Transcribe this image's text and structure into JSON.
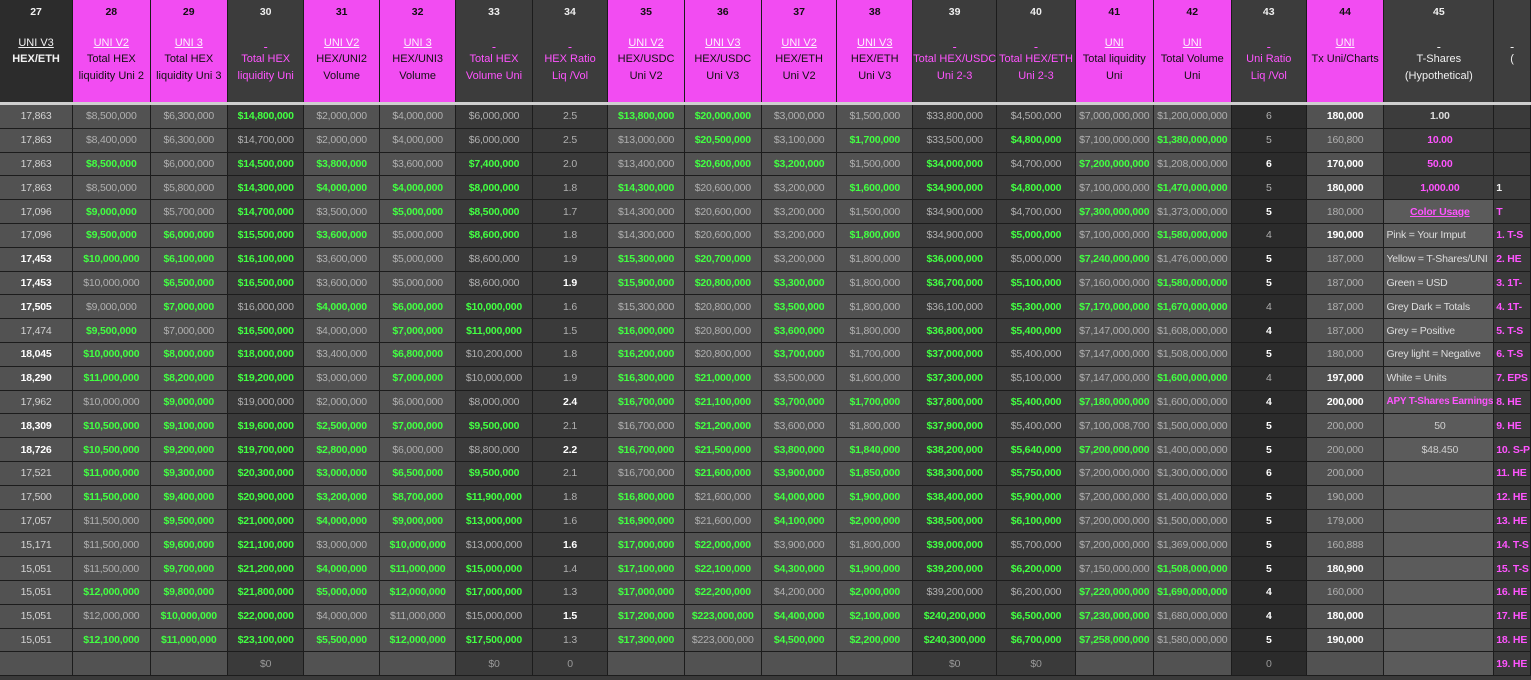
{
  "columns": [
    {
      "num": "27",
      "l1": "UNI V3",
      "l2": "HEX/ETH",
      "l3": ""
    },
    {
      "num": "28",
      "l1": "UNI V2",
      "l2": "Total HEX",
      "l3": "liquidity Uni 2"
    },
    {
      "num": "29",
      "l1": "UNI 3",
      "l2": "Total HEX",
      "l3": "liquidity Uni 3"
    },
    {
      "num": "30",
      "l1": "",
      "l2": "Total HEX",
      "l3": "liquidity Uni"
    },
    {
      "num": "31",
      "l1": "UNI V2",
      "l2": "HEX/UNI2",
      "l3": "Volume"
    },
    {
      "num": "32",
      "l1": "UNI 3",
      "l2": "HEX/UNI3",
      "l3": "Volume"
    },
    {
      "num": "33",
      "l1": "",
      "l2": "Total HEX",
      "l3": "Volume Uni"
    },
    {
      "num": "34",
      "l1": "",
      "l2": "HEX Ratio",
      "l3": "Liq /Vol"
    },
    {
      "num": "35",
      "l1": "UNI V2",
      "l2": "HEX/USDC",
      "l3": "Uni V2"
    },
    {
      "num": "36",
      "l1": "UNI V3",
      "l2": "HEX/USDC",
      "l3": "Uni V3"
    },
    {
      "num": "37",
      "l1": "UNI V2",
      "l2": "HEX/ETH",
      "l3": "Uni V2"
    },
    {
      "num": "38",
      "l1": "UNI V3",
      "l2": "HEX/ETH",
      "l3": "Uni V3"
    },
    {
      "num": "39",
      "l1": "",
      "l2": "Total HEX/USDC",
      "l3": "Uni 2-3"
    },
    {
      "num": "40",
      "l1": "",
      "l2": "Total HEX/ETH",
      "l3": "Uni 2-3"
    },
    {
      "num": "41",
      "l1": "UNI",
      "l2": "Total liquidity",
      "l3": "Uni"
    },
    {
      "num": "42",
      "l1": "UNI",
      "l2": "Total Volume",
      "l3": "Uni"
    },
    {
      "num": "43",
      "l1": "",
      "l2": "Uni Ratio",
      "l3": "Liq /Vol"
    },
    {
      "num": "44",
      "l1": "UNI",
      "l2": "Tx Uni/Charts",
      "l3": ""
    },
    {
      "num": "45",
      "l1": "",
      "l2": "T-Shares",
      "l3": "(Hypothetical)"
    },
    {
      "num": "",
      "l1": "",
      "l2": "(",
      "l3": ""
    }
  ],
  "rows": [
    [
      "17,863",
      "$8,500,000",
      "$6,300,000",
      "$14,800,000",
      "$2,000,000",
      "$4,000,000",
      "$6,000,000",
      "2.5",
      "$13,800,000",
      "$20,000,000",
      "$3,000,000",
      "$1,500,000",
      "$33,800,000",
      "$4,500,000",
      "$7,000,000,000",
      "$1,200,000,000",
      "6",
      "180,000"
    ],
    [
      "17,863",
      "$8,400,000",
      "$6,300,000",
      "$14,700,000",
      "$2,000,000",
      "$4,000,000",
      "$6,000,000",
      "2.5",
      "$13,000,000",
      "$20,500,000",
      "$3,100,000",
      "$1,700,000",
      "$33,500,000",
      "$4,800,000",
      "$7,100,000,000",
      "$1,380,000,000",
      "5",
      "160,800"
    ],
    [
      "17,863",
      "$8,500,000",
      "$6,000,000",
      "$14,500,000",
      "$3,800,000",
      "$3,600,000",
      "$7,400,000",
      "2.0",
      "$13,400,000",
      "$20,600,000",
      "$3,200,000",
      "$1,500,000",
      "$34,000,000",
      "$4,700,000",
      "$7,200,000,000",
      "$1,208,000,000",
      "6",
      "170,000"
    ],
    [
      "17,863",
      "$8,500,000",
      "$5,800,000",
      "$14,300,000",
      "$4,000,000",
      "$4,000,000",
      "$8,000,000",
      "1.8",
      "$14,300,000",
      "$20,600,000",
      "$3,200,000",
      "$1,600,000",
      "$34,900,000",
      "$4,800,000",
      "$7,100,000,000",
      "$1,470,000,000",
      "5",
      "180,000"
    ],
    [
      "17,096",
      "$9,000,000",
      "$5,700,000",
      "$14,700,000",
      "$3,500,000",
      "$5,000,000",
      "$8,500,000",
      "1.7",
      "$14,300,000",
      "$20,600,000",
      "$3,200,000",
      "$1,500,000",
      "$34,900,000",
      "$4,700,000",
      "$7,300,000,000",
      "$1,373,000,000",
      "5",
      "180,000"
    ],
    [
      "17,096",
      "$9,500,000",
      "$6,000,000",
      "$15,500,000",
      "$3,600,000",
      "$5,000,000",
      "$8,600,000",
      "1.8",
      "$14,300,000",
      "$20,600,000",
      "$3,200,000",
      "$1,800,000",
      "$34,900,000",
      "$5,000,000",
      "$7,100,000,000",
      "$1,580,000,000",
      "4",
      "190,000"
    ],
    [
      "17,453",
      "$10,000,000",
      "$6,100,000",
      "$16,100,000",
      "$3,600,000",
      "$5,000,000",
      "$8,600,000",
      "1.9",
      "$15,300,000",
      "$20,700,000",
      "$3,200,000",
      "$1,800,000",
      "$36,000,000",
      "$5,000,000",
      "$7,240,000,000",
      "$1,476,000,000",
      "5",
      "187,000"
    ],
    [
      "17,453",
      "$10,000,000",
      "$6,500,000",
      "$16,500,000",
      "$3,600,000",
      "$5,000,000",
      "$8,600,000",
      "1.9",
      "$15,900,000",
      "$20,800,000",
      "$3,300,000",
      "$1,800,000",
      "$36,700,000",
      "$5,100,000",
      "$7,160,000,000",
      "$1,580,000,000",
      "5",
      "187,000"
    ],
    [
      "17,505",
      "$9,000,000",
      "$7,000,000",
      "$16,000,000",
      "$4,000,000",
      "$6,000,000",
      "$10,000,000",
      "1.6",
      "$15,300,000",
      "$20,800,000",
      "$3,500,000",
      "$1,800,000",
      "$36,100,000",
      "$5,300,000",
      "$7,170,000,000",
      "$1,670,000,000",
      "4",
      "187,000"
    ],
    [
      "17,474",
      "$9,500,000",
      "$7,000,000",
      "$16,500,000",
      "$4,000,000",
      "$7,000,000",
      "$11,000,000",
      "1.5",
      "$16,000,000",
      "$20,800,000",
      "$3,600,000",
      "$1,800,000",
      "$36,800,000",
      "$5,400,000",
      "$7,147,000,000",
      "$1,608,000,000",
      "4",
      "187,000"
    ],
    [
      "18,045",
      "$10,000,000",
      "$8,000,000",
      "$18,000,000",
      "$3,400,000",
      "$6,800,000",
      "$10,200,000",
      "1.8",
      "$16,200,000",
      "$20,800,000",
      "$3,700,000",
      "$1,700,000",
      "$37,000,000",
      "$5,400,000",
      "$7,147,000,000",
      "$1,508,000,000",
      "5",
      "180,000"
    ],
    [
      "18,290",
      "$11,000,000",
      "$8,200,000",
      "$19,200,000",
      "$3,000,000",
      "$7,000,000",
      "$10,000,000",
      "1.9",
      "$16,300,000",
      "$21,000,000",
      "$3,500,000",
      "$1,600,000",
      "$37,300,000",
      "$5,100,000",
      "$7,147,000,000",
      "$1,600,000,000",
      "4",
      "197,000"
    ],
    [
      "17,962",
      "$10,000,000",
      "$9,000,000",
      "$19,000,000",
      "$2,000,000",
      "$6,000,000",
      "$8,000,000",
      "2.4",
      "$16,700,000",
      "$21,100,000",
      "$3,700,000",
      "$1,700,000",
      "$37,800,000",
      "$5,400,000",
      "$7,180,000,000",
      "$1,600,000,000",
      "4",
      "200,000"
    ],
    [
      "18,309",
      "$10,500,000",
      "$9,100,000",
      "$19,600,000",
      "$2,500,000",
      "$7,000,000",
      "$9,500,000",
      "2.1",
      "$16,700,000",
      "$21,200,000",
      "$3,600,000",
      "$1,800,000",
      "$37,900,000",
      "$5,400,000",
      "$7,100,008,700",
      "$1,500,000,000",
      "5",
      "200,000"
    ],
    [
      "18,726",
      "$10,500,000",
      "$9,200,000",
      "$19,700,000",
      "$2,800,000",
      "$6,000,000",
      "$8,800,000",
      "2.2",
      "$16,700,000",
      "$21,500,000",
      "$3,800,000",
      "$1,840,000",
      "$38,200,000",
      "$5,640,000",
      "$7,200,000,000",
      "$1,400,000,000",
      "5",
      "200,000"
    ],
    [
      "17,521",
      "$11,000,000",
      "$9,300,000",
      "$20,300,000",
      "$3,000,000",
      "$6,500,000",
      "$9,500,000",
      "2.1",
      "$16,700,000",
      "$21,600,000",
      "$3,900,000",
      "$1,850,000",
      "$38,300,000",
      "$5,750,000",
      "$7,200,000,000",
      "$1,300,000,000",
      "6",
      "200,000"
    ],
    [
      "17,500",
      "$11,500,000",
      "$9,400,000",
      "$20,900,000",
      "$3,200,000",
      "$8,700,000",
      "$11,900,000",
      "1.8",
      "$16,800,000",
      "$21,600,000",
      "$4,000,000",
      "$1,900,000",
      "$38,400,000",
      "$5,900,000",
      "$7,200,000,000",
      "$1,400,000,000",
      "5",
      "190,000"
    ],
    [
      "17,057",
      "$11,500,000",
      "$9,500,000",
      "$21,000,000",
      "$4,000,000",
      "$9,000,000",
      "$13,000,000",
      "1.6",
      "$16,900,000",
      "$21,600,000",
      "$4,100,000",
      "$2,000,000",
      "$38,500,000",
      "$6,100,000",
      "$7,200,000,000",
      "$1,500,000,000",
      "5",
      "179,000"
    ],
    [
      "15,171",
      "$11,500,000",
      "$9,600,000",
      "$21,100,000",
      "$3,000,000",
      "$10,000,000",
      "$13,000,000",
      "1.6",
      "$17,000,000",
      "$22,000,000",
      "$3,900,000",
      "$1,800,000",
      "$39,000,000",
      "$5,700,000",
      "$7,200,000,000",
      "$1,369,000,000",
      "5",
      "160,888"
    ],
    [
      "15,051",
      "$11,500,000",
      "$9,700,000",
      "$21,200,000",
      "$4,000,000",
      "$11,000,000",
      "$15,000,000",
      "1.4",
      "$17,100,000",
      "$22,100,000",
      "$4,300,000",
      "$1,900,000",
      "$39,200,000",
      "$6,200,000",
      "$7,150,000,000",
      "$1,508,000,000",
      "5",
      "180,900"
    ],
    [
      "15,051",
      "$12,000,000",
      "$9,800,000",
      "$21,800,000",
      "$5,000,000",
      "$12,000,000",
      "$17,000,000",
      "1.3",
      "$17,000,000",
      "$22,200,000",
      "$4,200,000",
      "$2,000,000",
      "$39,200,000",
      "$6,200,000",
      "$7,220,000,000",
      "$1,690,000,000",
      "4",
      "160,000"
    ],
    [
      "15,051",
      "$12,000,000",
      "$10,000,000",
      "$22,000,000",
      "$4,000,000",
      "$11,000,000",
      "$15,000,000",
      "1.5",
      "$17,200,000",
      "$223,000,000",
      "$4,400,000",
      "$2,100,000",
      "$240,200,000",
      "$6,500,000",
      "$7,230,000,000",
      "$1,680,000,000",
      "4",
      "180,000"
    ],
    [
      "15,051",
      "$12,100,000",
      "$11,000,000",
      "$23,100,000",
      "$5,500,000",
      "$12,000,000",
      "$17,500,000",
      "1.3",
      "$17,300,000",
      "$223,000,000",
      "$4,500,000",
      "$2,200,000",
      "$240,300,000",
      "$6,700,000",
      "$7,258,000,000",
      "$1,580,000,000",
      "5",
      "190,000"
    ],
    [
      "",
      "",
      "",
      "$0",
      "",
      "",
      "$0",
      "0",
      "",
      "",
      "",
      "",
      "$0",
      "$0",
      "",
      "",
      "0",
      ""
    ]
  ],
  "side_panel": [
    "1.00",
    "10.00",
    "50.00",
    "1,000.00",
    "Color Usage",
    "Pink = Your Imput",
    "Yellow = T-Shares/UNI",
    "Green = USD",
    "Grey Dark = Totals",
    "Grey = Positive",
    "Grey light = Negative",
    "White = Units",
    "APY T-Shares Earnings",
    "50",
    "$48.450",
    "",
    "",
    "",
    "",
    "",
    "",
    "",
    "",
    ""
  ],
  "last_col": [
    "",
    "",
    "",
    "1",
    "T",
    "1.  T-S",
    "2.  HE",
    "3.  1T-",
    "4.  1T-",
    "5.  T-S",
    "6.  T-S",
    "7.  EPS",
    "8.  HE",
    "9.  HE",
    "10.  S-P",
    "11.  HE",
    "12.  HE",
    "13.  HE",
    "14.  T-S",
    "15.  T-S",
    "16.  HE",
    "17.  HE",
    "18.  HE",
    "19.  HE"
  ],
  "colors": {
    "pink": "#f24cf2",
    "green_text": "#42ff42",
    "dark_header": "#2c2c2c"
  }
}
